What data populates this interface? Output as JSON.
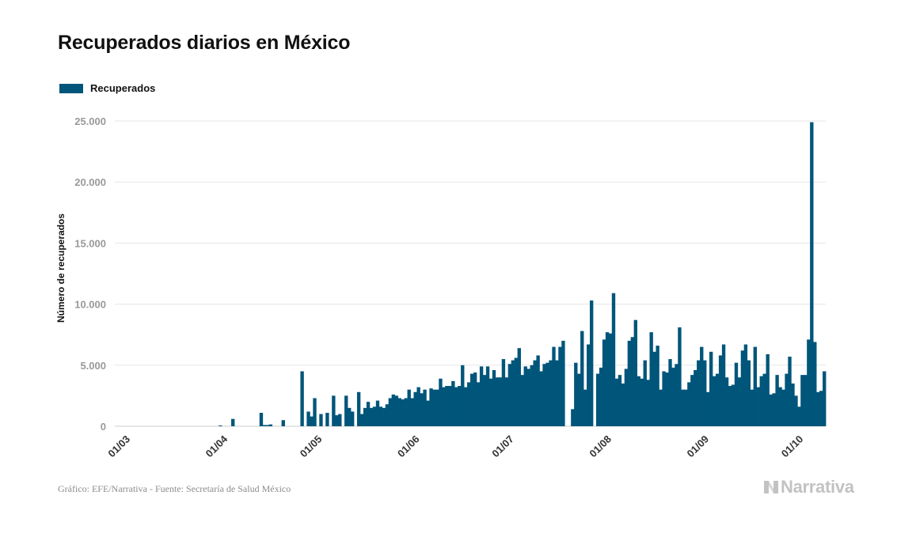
{
  "title": "Recuperados diarios en México",
  "footer": {
    "source": "Gráfico: EFE/Narrativa - Fuente: Secretaría de Salud México",
    "brand": "Narrativa"
  },
  "colors": {
    "bar": "#00557a",
    "grid": "#e6e6e6",
    "tick_text": "#999999",
    "axis_text": "#333333",
    "brand": "#c2c2c2"
  },
  "chart_data": {
    "type": "bar",
    "title": "Recuperados diarios en México",
    "xlabel": "",
    "ylabel": "Número de recuperados",
    "ylim": [
      0,
      25000
    ],
    "yticks": [
      0,
      5000,
      10000,
      15000,
      20000,
      25000
    ],
    "ytick_labels": [
      "0",
      "5.000",
      "10.000",
      "15.000",
      "20.000",
      "25.000"
    ],
    "xtick_labels": [
      {
        "date": "2020-03-01",
        "label": "01/03"
      },
      {
        "date": "2020-04-01",
        "label": "01/04"
      },
      {
        "date": "2020-05-01",
        "label": "01/05"
      },
      {
        "date": "2020-06-01",
        "label": "01/06"
      },
      {
        "date": "2020-07-01",
        "label": "01/07"
      },
      {
        "date": "2020-08-01",
        "label": "01/08"
      },
      {
        "date": "2020-09-01",
        "label": "01/09"
      },
      {
        "date": "2020-10-01",
        "label": "01/10"
      }
    ],
    "grid": true,
    "legend": "top-left",
    "series": [
      {
        "name": "Recuperados",
        "color": "#00557a",
        "points": [
          [
            "2020-02-28",
            0
          ],
          [
            "2020-02-29",
            0
          ],
          [
            "2020-03-01",
            0
          ],
          [
            "2020-03-02",
            0
          ],
          [
            "2020-03-03",
            0
          ],
          [
            "2020-03-04",
            0
          ],
          [
            "2020-03-05",
            0
          ],
          [
            "2020-03-06",
            0
          ],
          [
            "2020-03-07",
            0
          ],
          [
            "2020-03-08",
            0
          ],
          [
            "2020-03-09",
            0
          ],
          [
            "2020-03-10",
            0
          ],
          [
            "2020-03-11",
            0
          ],
          [
            "2020-03-12",
            0
          ],
          [
            "2020-03-13",
            0
          ],
          [
            "2020-03-14",
            0
          ],
          [
            "2020-03-15",
            0
          ],
          [
            "2020-03-16",
            0
          ],
          [
            "2020-03-17",
            0
          ],
          [
            "2020-03-18",
            0
          ],
          [
            "2020-03-19",
            0
          ],
          [
            "2020-03-20",
            0
          ],
          [
            "2020-03-21",
            0
          ],
          [
            "2020-03-22",
            0
          ],
          [
            "2020-03-23",
            0
          ],
          [
            "2020-03-24",
            0
          ],
          [
            "2020-03-25",
            0
          ],
          [
            "2020-03-26",
            0
          ],
          [
            "2020-03-27",
            0
          ],
          [
            "2020-03-28",
            0
          ],
          [
            "2020-03-29",
            0
          ],
          [
            "2020-03-30",
            0
          ],
          [
            "2020-03-31",
            0
          ],
          [
            "2020-04-01",
            60
          ],
          [
            "2020-04-02",
            0
          ],
          [
            "2020-04-03",
            0
          ],
          [
            "2020-04-04",
            0
          ],
          [
            "2020-04-05",
            600
          ],
          [
            "2020-04-06",
            0
          ],
          [
            "2020-04-07",
            0
          ],
          [
            "2020-04-08",
            0
          ],
          [
            "2020-04-09",
            0
          ],
          [
            "2020-04-10",
            0
          ],
          [
            "2020-04-11",
            0
          ],
          [
            "2020-04-12",
            0
          ],
          [
            "2020-04-13",
            0
          ],
          [
            "2020-04-14",
            1100
          ],
          [
            "2020-04-15",
            100
          ],
          [
            "2020-04-16",
            100
          ],
          [
            "2020-04-17",
            150
          ],
          [
            "2020-04-18",
            0
          ],
          [
            "2020-04-19",
            0
          ],
          [
            "2020-04-20",
            0
          ],
          [
            "2020-04-21",
            500
          ],
          [
            "2020-04-22",
            0
          ],
          [
            "2020-04-23",
            0
          ],
          [
            "2020-04-24",
            0
          ],
          [
            "2020-04-25",
            0
          ],
          [
            "2020-04-26",
            0
          ],
          [
            "2020-04-27",
            4500
          ],
          [
            "2020-04-28",
            0
          ],
          [
            "2020-04-29",
            1200
          ],
          [
            "2020-04-30",
            800
          ],
          [
            "2020-05-01",
            2300
          ],
          [
            "2020-05-02",
            0
          ],
          [
            "2020-05-03",
            1000
          ],
          [
            "2020-05-04",
            0
          ],
          [
            "2020-05-05",
            1100
          ],
          [
            "2020-05-06",
            0
          ],
          [
            "2020-05-07",
            2500
          ],
          [
            "2020-05-08",
            900
          ],
          [
            "2020-05-09",
            1000
          ],
          [
            "2020-05-10",
            0
          ],
          [
            "2020-05-11",
            2500
          ],
          [
            "2020-05-12",
            1500
          ],
          [
            "2020-05-13",
            1200
          ],
          [
            "2020-05-14",
            0
          ],
          [
            "2020-05-15",
            2800
          ],
          [
            "2020-05-16",
            1000
          ],
          [
            "2020-05-17",
            1500
          ],
          [
            "2020-05-18",
            2000
          ],
          [
            "2020-05-19",
            1500
          ],
          [
            "2020-05-20",
            1600
          ],
          [
            "2020-05-21",
            2100
          ],
          [
            "2020-05-22",
            1600
          ],
          [
            "2020-05-23",
            1500
          ],
          [
            "2020-05-24",
            1800
          ],
          [
            "2020-05-25",
            2300
          ],
          [
            "2020-05-26",
            2600
          ],
          [
            "2020-05-27",
            2500
          ],
          [
            "2020-05-28",
            2300
          ],
          [
            "2020-05-29",
            2200
          ],
          [
            "2020-05-30",
            2300
          ],
          [
            "2020-05-31",
            3000
          ],
          [
            "2020-06-01",
            2300
          ],
          [
            "2020-06-02",
            2800
          ],
          [
            "2020-06-03",
            3200
          ],
          [
            "2020-06-04",
            2700
          ],
          [
            "2020-06-05",
            3000
          ],
          [
            "2020-06-06",
            2100
          ],
          [
            "2020-06-07",
            3100
          ],
          [
            "2020-06-08",
            3000
          ],
          [
            "2020-06-09",
            3000
          ],
          [
            "2020-06-10",
            3900
          ],
          [
            "2020-06-11",
            3200
          ],
          [
            "2020-06-12",
            3300
          ],
          [
            "2020-06-13",
            3300
          ],
          [
            "2020-06-14",
            3700
          ],
          [
            "2020-06-15",
            3200
          ],
          [
            "2020-06-16",
            3300
          ],
          [
            "2020-06-17",
            5000
          ],
          [
            "2020-06-18",
            3200
          ],
          [
            "2020-06-19",
            3600
          ],
          [
            "2020-06-20",
            4300
          ],
          [
            "2020-06-21",
            4400
          ],
          [
            "2020-06-22",
            3600
          ],
          [
            "2020-06-23",
            4900
          ],
          [
            "2020-06-24",
            4200
          ],
          [
            "2020-06-25",
            4900
          ],
          [
            "2020-06-26",
            3900
          ],
          [
            "2020-06-27",
            4600
          ],
          [
            "2020-06-28",
            4000
          ],
          [
            "2020-06-29",
            4000
          ],
          [
            "2020-06-30",
            5500
          ],
          [
            "2020-07-01",
            4000
          ],
          [
            "2020-07-02",
            5100
          ],
          [
            "2020-07-03",
            5400
          ],
          [
            "2020-07-04",
            5600
          ],
          [
            "2020-07-05",
            6400
          ],
          [
            "2020-07-06",
            4200
          ],
          [
            "2020-07-07",
            4900
          ],
          [
            "2020-07-08",
            4700
          ],
          [
            "2020-07-09",
            5000
          ],
          [
            "2020-07-10",
            5400
          ],
          [
            "2020-07-11",
            5800
          ],
          [
            "2020-07-12",
            4500
          ],
          [
            "2020-07-13",
            5100
          ],
          [
            "2020-07-14",
            5200
          ],
          [
            "2020-07-15",
            5400
          ],
          [
            "2020-07-16",
            6500
          ],
          [
            "2020-07-17",
            5400
          ],
          [
            "2020-07-18",
            6500
          ],
          [
            "2020-07-19",
            7000
          ],
          [
            "2020-07-20",
            0
          ],
          [
            "2020-07-21",
            0
          ],
          [
            "2020-07-22",
            1400
          ],
          [
            "2020-07-23",
            5200
          ],
          [
            "2020-07-24",
            4300
          ],
          [
            "2020-07-25",
            7800
          ],
          [
            "2020-07-26",
            3000
          ],
          [
            "2020-07-27",
            6700
          ],
          [
            "2020-07-28",
            10300
          ],
          [
            "2020-07-29",
            0
          ],
          [
            "2020-07-30",
            4300
          ],
          [
            "2020-07-31",
            4800
          ],
          [
            "2020-08-01",
            7100
          ],
          [
            "2020-08-02",
            7700
          ],
          [
            "2020-08-03",
            7600
          ],
          [
            "2020-08-04",
            10900
          ],
          [
            "2020-08-05",
            3900
          ],
          [
            "2020-08-06",
            4200
          ],
          [
            "2020-08-07",
            3500
          ],
          [
            "2020-08-08",
            4700
          ],
          [
            "2020-08-09",
            7000
          ],
          [
            "2020-08-10",
            7300
          ],
          [
            "2020-08-11",
            8700
          ],
          [
            "2020-08-12",
            4100
          ],
          [
            "2020-08-13",
            3900
          ],
          [
            "2020-08-14",
            5400
          ],
          [
            "2020-08-15",
            3800
          ],
          [
            "2020-08-16",
            7700
          ],
          [
            "2020-08-17",
            6100
          ],
          [
            "2020-08-18",
            6600
          ],
          [
            "2020-08-19",
            3000
          ],
          [
            "2020-08-20",
            4500
          ],
          [
            "2020-08-21",
            4400
          ],
          [
            "2020-08-22",
            5500
          ],
          [
            "2020-08-23",
            4800
          ],
          [
            "2020-08-24",
            5100
          ],
          [
            "2020-08-25",
            8100
          ],
          [
            "2020-08-26",
            3000
          ],
          [
            "2020-08-27",
            3000
          ],
          [
            "2020-08-28",
            3600
          ],
          [
            "2020-08-29",
            4200
          ],
          [
            "2020-08-30",
            4600
          ],
          [
            "2020-08-31",
            5400
          ],
          [
            "2020-09-01",
            6500
          ],
          [
            "2020-09-02",
            5400
          ],
          [
            "2020-09-03",
            2800
          ],
          [
            "2020-09-04",
            6100
          ],
          [
            "2020-09-05",
            4100
          ],
          [
            "2020-09-06",
            4300
          ],
          [
            "2020-09-07",
            5800
          ],
          [
            "2020-09-08",
            6700
          ],
          [
            "2020-09-09",
            4000
          ],
          [
            "2020-09-10",
            3300
          ],
          [
            "2020-09-11",
            3400
          ],
          [
            "2020-09-12",
            5200
          ],
          [
            "2020-09-13",
            4000
          ],
          [
            "2020-09-14",
            6200
          ],
          [
            "2020-09-15",
            6700
          ],
          [
            "2020-09-16",
            5400
          ],
          [
            "2020-09-17",
            3000
          ],
          [
            "2020-09-18",
            6500
          ],
          [
            "2020-09-19",
            3200
          ],
          [
            "2020-09-20",
            4100
          ],
          [
            "2020-09-21",
            4300
          ],
          [
            "2020-09-22",
            5900
          ],
          [
            "2020-09-23",
            2600
          ],
          [
            "2020-09-24",
            2700
          ],
          [
            "2020-09-25",
            4200
          ],
          [
            "2020-09-26",
            3200
          ],
          [
            "2020-09-27",
            3000
          ],
          [
            "2020-09-28",
            4300
          ],
          [
            "2020-09-29",
            5700
          ],
          [
            "2020-09-30",
            3500
          ],
          [
            "2020-10-01",
            2500
          ],
          [
            "2020-10-02",
            1600
          ],
          [
            "2020-10-03",
            4200
          ],
          [
            "2020-10-04",
            4200
          ],
          [
            "2020-10-05",
            7100
          ],
          [
            "2020-10-06",
            24900
          ],
          [
            "2020-10-07",
            6900
          ],
          [
            "2020-10-08",
            2800
          ],
          [
            "2020-10-09",
            2900
          ],
          [
            "2020-10-10",
            4500
          ]
        ]
      }
    ]
  }
}
